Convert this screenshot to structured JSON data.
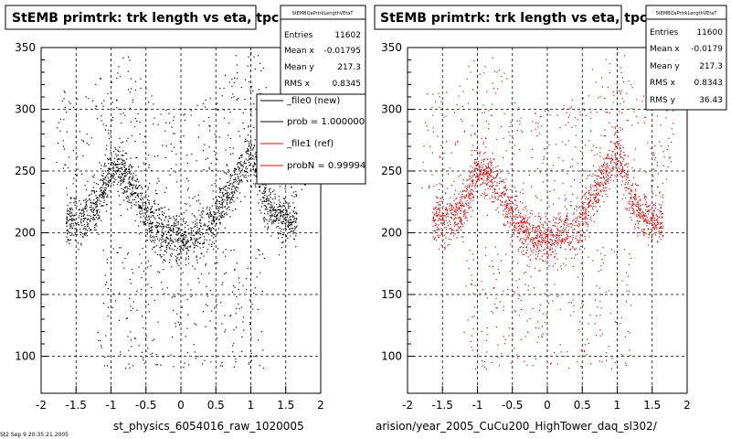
{
  "panels": [
    {
      "title": "StEMB primtrk: trk length vs eta, tpc",
      "stats": {
        "name": "StEMBQaPrtrkLengthVEtaT",
        "rows": [
          {
            "label": "Entries",
            "value": "11602"
          },
          {
            "label": "Mean x",
            "value": "-0.01795"
          },
          {
            "label": "Mean y",
            "value": "217.3"
          },
          {
            "label": "RMS x",
            "value": "0.8345"
          }
        ]
      },
      "legend": [
        {
          "label": "_file0 (new)",
          "color": "#000000"
        },
        {
          "label": "prob = 1.000000",
          "color": "#000000"
        },
        {
          "label": "_file1 (ref)",
          "color": "#ff0000"
        },
        {
          "label": "probN = 0.99994",
          "color": "#ff0000"
        }
      ],
      "caption": "st_physics_6054016_raw_1020005",
      "marker_color": "#000000"
    },
    {
      "title": "StEMB primtrk: trk length vs eta, tpc",
      "stats": {
        "name": "StEMBQaPrtrkLengthVEtaT",
        "rows": [
          {
            "label": "Entries",
            "value": "11600"
          },
          {
            "label": "Mean x",
            "value": "-0.0179"
          },
          {
            "label": "Mean y",
            "value": "217.3"
          },
          {
            "label": "RMS x",
            "value": "0.8343"
          },
          {
            "label": "RMS y",
            "value": "36.43"
          }
        ]
      },
      "caption": "arision/year_2005_CuCu200_HighTower_daq_sl302/",
      "marker_color": "#ff0000"
    }
  ],
  "footer_note": "St2 Sep 9 20:35:21 2005",
  "chart_data": [
    {
      "type": "scatter",
      "title": "StEMB primtrk: trk length vs eta, tpc",
      "xlabel": "",
      "ylabel": "",
      "xlim": [
        -2,
        2
      ],
      "ylim": [
        70,
        350
      ],
      "xticks": [
        -2,
        -1.5,
        -1,
        -0.5,
        0,
        0.5,
        1,
        1.5,
        2
      ],
      "yticks": [
        100,
        150,
        200,
        250,
        300,
        350
      ],
      "grid": true,
      "legend_placement": "top-right",
      "density_profile": [
        {
          "x": -1.6,
          "y": 210
        },
        {
          "x": -1.4,
          "y": 212
        },
        {
          "x": -1.2,
          "y": 220
        },
        {
          "x": -1.0,
          "y": 255
        },
        {
          "x": -0.8,
          "y": 245
        },
        {
          "x": -0.6,
          "y": 225
        },
        {
          "x": -0.4,
          "y": 205
        },
        {
          "x": -0.2,
          "y": 198
        },
        {
          "x": 0.0,
          "y": 195
        },
        {
          "x": 0.2,
          "y": 198
        },
        {
          "x": 0.4,
          "y": 205
        },
        {
          "x": 0.6,
          "y": 225
        },
        {
          "x": 0.8,
          "y": 245
        },
        {
          "x": 1.0,
          "y": 265
        },
        {
          "x": 1.2,
          "y": 225
        },
        {
          "x": 1.4,
          "y": 212
        },
        {
          "x": 1.6,
          "y": 210
        }
      ],
      "series": [
        {
          "name": "_file0 (new)",
          "color": "#000000"
        }
      ]
    },
    {
      "type": "scatter",
      "title": "StEMB primtrk: trk length vs eta, tpc",
      "xlabel": "",
      "ylabel": "",
      "xlim": [
        -2,
        2
      ],
      "ylim": [
        70,
        350
      ],
      "xticks": [
        -2,
        -1.5,
        -1,
        -0.5,
        0,
        0.5,
        1,
        1.5,
        2
      ],
      "yticks": [
        100,
        150,
        200,
        250,
        300,
        350
      ],
      "grid": true,
      "density_profile": [
        {
          "x": -1.6,
          "y": 210
        },
        {
          "x": -1.4,
          "y": 212
        },
        {
          "x": -1.2,
          "y": 220
        },
        {
          "x": -1.0,
          "y": 255
        },
        {
          "x": -0.8,
          "y": 245
        },
        {
          "x": -0.6,
          "y": 225
        },
        {
          "x": -0.4,
          "y": 205
        },
        {
          "x": -0.2,
          "y": 198
        },
        {
          "x": 0.0,
          "y": 195
        },
        {
          "x": 0.2,
          "y": 198
        },
        {
          "x": 0.4,
          "y": 205
        },
        {
          "x": 0.6,
          "y": 225
        },
        {
          "x": 0.8,
          "y": 245
        },
        {
          "x": 1.0,
          "y": 265
        },
        {
          "x": 1.2,
          "y": 225
        },
        {
          "x": 1.4,
          "y": 212
        },
        {
          "x": 1.6,
          "y": 210
        }
      ],
      "series": [
        {
          "name": "_file1 (ref)",
          "color": "#ff0000"
        }
      ]
    }
  ]
}
